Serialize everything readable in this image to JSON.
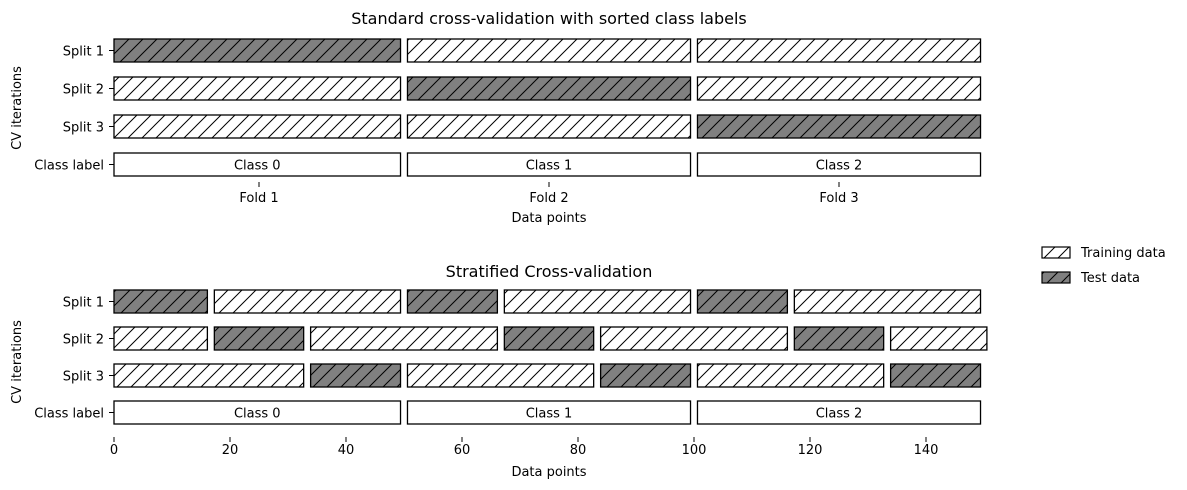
{
  "chart_data": [
    {
      "type": "bar",
      "title": "Standard cross-validation with sorted class labels",
      "xlabel": "Data points",
      "ylabel": "CV iterations",
      "x_axis": "folds",
      "xlim": [
        0,
        150
      ],
      "categories": [
        "Split 1",
        "Split 2",
        "Split 3",
        "Class label"
      ],
      "folds": [
        "Fold 1",
        "Fold 2",
        "Fold 3"
      ],
      "rows": [
        {
          "label": "Split 1",
          "segments": [
            {
              "start": 0,
              "end": 50,
              "kind": "test"
            },
            {
              "start": 50,
              "end": 100,
              "kind": "train"
            },
            {
              "start": 100,
              "end": 150,
              "kind": "train"
            }
          ]
        },
        {
          "label": "Split 2",
          "segments": [
            {
              "start": 0,
              "end": 50,
              "kind": "train"
            },
            {
              "start": 50,
              "end": 100,
              "kind": "test"
            },
            {
              "start": 100,
              "end": 150,
              "kind": "train"
            }
          ]
        },
        {
          "label": "Split 3",
          "segments": [
            {
              "start": 0,
              "end": 50,
              "kind": "train"
            },
            {
              "start": 50,
              "end": 100,
              "kind": "train"
            },
            {
              "start": 100,
              "end": 150,
              "kind": "test"
            }
          ]
        },
        {
          "label": "Class label",
          "segments": [
            {
              "start": 0,
              "end": 50,
              "kind": "class",
              "text": "Class 0"
            },
            {
              "start": 50,
              "end": 100,
              "kind": "class",
              "text": "Class 1"
            },
            {
              "start": 100,
              "end": 150,
              "kind": "class",
              "text": "Class 2"
            }
          ]
        }
      ]
    },
    {
      "type": "bar",
      "title": "Stratified Cross-validation",
      "xlabel": "Data points",
      "ylabel": "CV iterations",
      "x_axis": "numeric",
      "xlim": [
        0,
        150
      ],
      "xticks": [
        0,
        20,
        40,
        60,
        80,
        100,
        120,
        140
      ],
      "categories": [
        "Split 1",
        "Split 2",
        "Split 3",
        "Class label"
      ],
      "rows": [
        {
          "label": "Split 1",
          "segments": [
            {
              "start": 0,
              "end": 16.7,
              "kind": "test"
            },
            {
              "start": 16.7,
              "end": 50,
              "kind": "train"
            },
            {
              "start": 50,
              "end": 66.7,
              "kind": "test"
            },
            {
              "start": 66.7,
              "end": 100,
              "kind": "train"
            },
            {
              "start": 100,
              "end": 116.7,
              "kind": "test"
            },
            {
              "start": 116.7,
              "end": 150,
              "kind": "train"
            }
          ]
        },
        {
          "label": "Split 2",
          "segments": [
            {
              "start": 0,
              "end": 16.7,
              "kind": "train"
            },
            {
              "start": 16.7,
              "end": 33.3,
              "kind": "test"
            },
            {
              "start": 33.3,
              "end": 66.7,
              "kind": "train"
            },
            {
              "start": 66.7,
              "end": 83.3,
              "kind": "test"
            },
            {
              "start": 83.3,
              "end": 116.7,
              "kind": "train"
            },
            {
              "start": 116.7,
              "end": 133.3,
              "kind": "test"
            },
            {
              "start": 133.3,
              "end": 150.5,
              "kind": "train"
            }
          ]
        },
        {
          "label": "Split 3",
          "segments": [
            {
              "start": 0,
              "end": 33.3,
              "kind": "train"
            },
            {
              "start": 33.3,
              "end": 50,
              "kind": "test"
            },
            {
              "start": 50,
              "end": 83.3,
              "kind": "train"
            },
            {
              "start": 83.3,
              "end": 100,
              "kind": "test"
            },
            {
              "start": 100,
              "end": 133.3,
              "kind": "train"
            },
            {
              "start": 133.3,
              "end": 150,
              "kind": "test"
            }
          ]
        },
        {
          "label": "Class label",
          "segments": [
            {
              "start": 0,
              "end": 50,
              "kind": "class",
              "text": "Class 0"
            },
            {
              "start": 50,
              "end": 100,
              "kind": "class",
              "text": "Class 1"
            },
            {
              "start": 100,
              "end": 150,
              "kind": "class",
              "text": "Class 2"
            }
          ]
        }
      ]
    }
  ],
  "legend": {
    "position": "right",
    "items": [
      {
        "label": "Training data",
        "kind": "train"
      },
      {
        "label": "Test data",
        "kind": "test"
      }
    ]
  },
  "colors": {
    "test_fill": "#808080",
    "train_fill": "#ffffff",
    "class_fill": "#ffffff",
    "edge": "#000000",
    "hatch": "#000000"
  }
}
